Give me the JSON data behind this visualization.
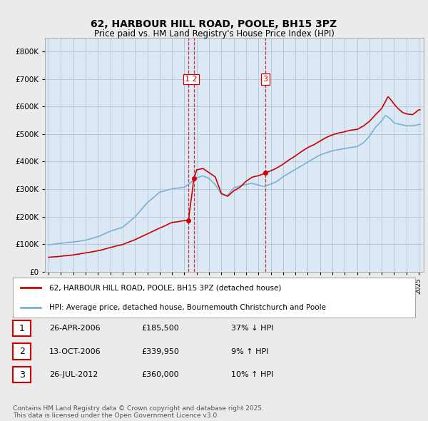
{
  "title": "62, HARBOUR HILL ROAD, POOLE, BH15 3PZ",
  "subtitle": "Price paid vs. HM Land Registry's House Price Index (HPI)",
  "legend_line1": "62, HARBOUR HILL ROAD, POOLE, BH15 3PZ (detached house)",
  "legend_line2": "HPI: Average price, detached house, Bournemouth Christchurch and Poole",
  "footnote": "Contains HM Land Registry data © Crown copyright and database right 2025.\nThis data is licensed under the Open Government Licence v3.0.",
  "transactions": [
    {
      "num": 1,
      "date": "26-APR-2006",
      "price": "£185,500",
      "change": "37% ↓ HPI"
    },
    {
      "num": 2,
      "date": "13-OCT-2006",
      "price": "£339,950",
      "change": "9% ↑ HPI"
    },
    {
      "num": 3,
      "date": "26-JUL-2012",
      "price": "£360,000",
      "change": "10% ↑ HPI"
    }
  ],
  "vline_x": [
    2006.32,
    2006.79,
    2012.56
  ],
  "vline_labels": [
    "1",
    "2",
    "3"
  ],
  "sale_year_vals": [
    2006.32,
    2006.79,
    2012.56
  ],
  "sale_prices": [
    185500,
    339950,
    360000
  ],
  "line_color_red": "#cc0000",
  "line_color_blue": "#7ab0d4",
  "background_color": "#ebebeb",
  "plot_bg_color": "#dce9f5",
  "grid_color": "#b0c4d8",
  "ylim": [
    0,
    850000
  ],
  "yticks": [
    0,
    100000,
    200000,
    300000,
    400000,
    500000,
    600000,
    700000,
    800000
  ],
  "xlim_start": 1994.7,
  "xlim_end": 2025.4
}
